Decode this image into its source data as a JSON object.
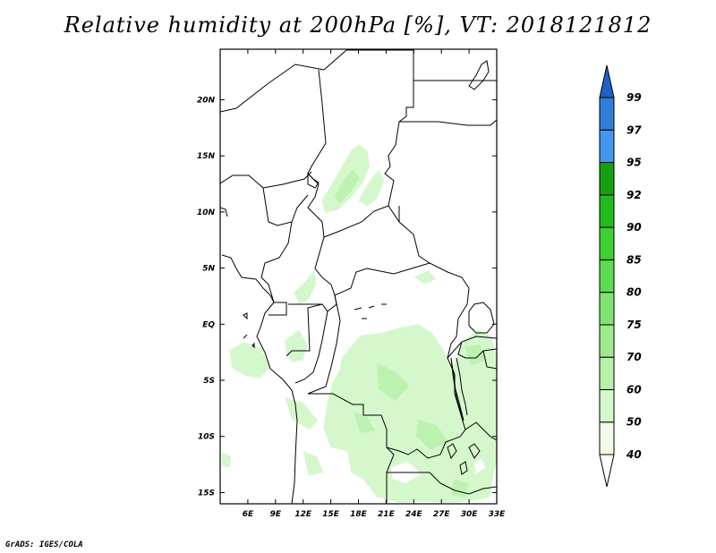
{
  "figure": {
    "title": "Relative humidity at 200hPa [%], VT: 2018121812",
    "credit": "GrADS: IGES/COLA"
  },
  "map": {
    "type": "map",
    "lon_range": [
      3,
      33
    ],
    "lat_range": [
      -16,
      24.5
    ],
    "x_ticks": [
      {
        "lon": 6,
        "label": "6E"
      },
      {
        "lon": 9,
        "label": "9E"
      },
      {
        "lon": 12,
        "label": "12E"
      },
      {
        "lon": 15,
        "label": "15E"
      },
      {
        "lon": 18,
        "label": "18E"
      },
      {
        "lon": 21,
        "label": "21E"
      },
      {
        "lon": 24,
        "label": "24E"
      },
      {
        "lon": 27,
        "label": "27E"
      },
      {
        "lon": 30,
        "label": "30E"
      },
      {
        "lon": 33,
        "label": "33E"
      }
    ],
    "y_ticks": [
      {
        "lat": 20,
        "label": "20N"
      },
      {
        "lat": 15,
        "label": "15N"
      },
      {
        "lat": 10,
        "label": "10N"
      },
      {
        "lat": 5,
        "label": "5N"
      },
      {
        "lat": 0,
        "label": "EQ"
      },
      {
        "lat": -5,
        "label": "5S"
      },
      {
        "lat": -10,
        "label": "10S"
      },
      {
        "lat": -15,
        "label": "15S"
      }
    ]
  },
  "colorbar": {
    "levels": [
      "40",
      "50",
      "60",
      "70",
      "75",
      "80",
      "85",
      "90",
      "92",
      "95",
      "97",
      "99"
    ],
    "colors": [
      "#f0fbea",
      "#d5f7cc",
      "#b7f0aa",
      "#9ceb8d",
      "#80e472",
      "#5cdc4e",
      "#3cd131",
      "#22bb1e",
      "#16a010",
      "#4496ec",
      "#2f7fd8",
      "#1e63c4"
    ],
    "under_color": "#ffffff",
    "over_color": "#1e63c4"
  },
  "humidity_regions": [
    {
      "level": "50",
      "pts": [
        [
          14.0,
          11.0
        ],
        [
          15.2,
          12.6
        ],
        [
          16.4,
          14.4
        ],
        [
          17.3,
          15.6
        ],
        [
          18.1,
          16.0
        ],
        [
          19.0,
          15.4
        ],
        [
          19.2,
          14.0
        ],
        [
          18.4,
          12.5
        ],
        [
          17.1,
          11.2
        ],
        [
          15.8,
          10.2
        ],
        [
          14.4,
          9.9
        ]
      ]
    },
    {
      "level": "50",
      "pts": [
        [
          18.0,
          11.0
        ],
        [
          19.0,
          12.5
        ],
        [
          20.2,
          13.8
        ],
        [
          20.8,
          12.8
        ],
        [
          20.0,
          11.2
        ],
        [
          19.0,
          10.5
        ]
      ]
    },
    {
      "level": "50",
      "pts": [
        [
          4.0,
          -2.3
        ],
        [
          5.6,
          -1.6
        ],
        [
          7.4,
          -2.1
        ],
        [
          8.4,
          -3.8
        ],
        [
          7.4,
          -4.8
        ],
        [
          5.8,
          -4.6
        ],
        [
          4.3,
          -3.9
        ]
      ]
    },
    {
      "level": "50",
      "pts": [
        [
          11.0,
          2.8
        ],
        [
          12.2,
          3.8
        ],
        [
          13.2,
          4.8
        ],
        [
          13.4,
          3.6
        ],
        [
          12.6,
          2.2
        ],
        [
          11.6,
          1.8
        ]
      ]
    },
    {
      "level": "50",
      "pts": [
        [
          24.0,
          4.2
        ],
        [
          25.6,
          4.8
        ],
        [
          26.4,
          4.0
        ],
        [
          25.2,
          3.6
        ]
      ]
    },
    {
      "level": "50",
      "pts": [
        [
          10.0,
          -1.5
        ],
        [
          11.5,
          -0.5
        ],
        [
          12.5,
          -1.8
        ],
        [
          12.0,
          -3.2
        ],
        [
          10.8,
          -3.4
        ],
        [
          10.2,
          -2.6
        ]
      ]
    },
    {
      "level": "50",
      "pts": [
        [
          16.2,
          -3.0
        ],
        [
          18.2,
          -1.0
        ],
        [
          20.4,
          -0.8
        ],
        [
          22.5,
          -0.3
        ],
        [
          24.5,
          0.0
        ],
        [
          26.0,
          -0.8
        ],
        [
          27.0,
          -2.0
        ],
        [
          28.2,
          -3.8
        ],
        [
          29.5,
          -1.4
        ],
        [
          31.0,
          -0.5
        ],
        [
          32.5,
          -1.2
        ],
        [
          33.0,
          -3.0
        ],
        [
          33.0,
          -12.0
        ],
        [
          32.2,
          -15.4
        ],
        [
          30.0,
          -15.8
        ],
        [
          27.5,
          -15.9
        ],
        [
          25.0,
          -15.8
        ],
        [
          22.5,
          -15.9
        ],
        [
          20.0,
          -15.4
        ],
        [
          18.5,
          -13.8
        ],
        [
          17.2,
          -13.2
        ],
        [
          16.8,
          -11.3
        ],
        [
          15.0,
          -11.0
        ],
        [
          14.2,
          -9.2
        ],
        [
          14.6,
          -7.0
        ],
        [
          15.2,
          -5.2
        ],
        [
          16.0,
          -4.0
        ]
      ]
    },
    {
      "level": "50",
      "pts": [
        [
          10.0,
          -6.5
        ],
        [
          12.0,
          -7.0
        ],
        [
          13.6,
          -8.6
        ],
        [
          12.7,
          -9.4
        ],
        [
          10.8,
          -8.5
        ]
      ]
    },
    {
      "level": "50",
      "pts": [
        [
          3.2,
          -11.4
        ],
        [
          4.2,
          -11.8
        ],
        [
          4.0,
          -12.8
        ],
        [
          3.2,
          -12.6
        ]
      ]
    },
    {
      "level": "50",
      "pts": [
        [
          12.0,
          -11.3
        ],
        [
          13.5,
          -11.8
        ],
        [
          14.2,
          -13.2
        ],
        [
          12.6,
          -13.5
        ]
      ]
    }
  ],
  "humidity_holes": [
    {
      "pts": [
        [
          21.5,
          -12.8
        ],
        [
          23.3,
          -12.2
        ],
        [
          24.8,
          -13.4
        ],
        [
          23.1,
          -14.2
        ],
        [
          21.7,
          -13.8
        ]
      ]
    },
    {
      "pts": [
        [
          30.5,
          -12.4
        ],
        [
          31.4,
          -12.0
        ],
        [
          31.8,
          -12.8
        ],
        [
          30.8,
          -13.3
        ]
      ]
    }
  ],
  "humidity_blobs": [
    {
      "level": "60",
      "pts": [
        [
          15.4,
          11.3
        ],
        [
          16.5,
          13.0
        ],
        [
          17.4,
          13.8
        ],
        [
          18.1,
          13.0
        ],
        [
          17.2,
          11.8
        ],
        [
          16.0,
          10.8
        ]
      ]
    },
    {
      "level": "60",
      "pts": [
        [
          20.0,
          -3.5
        ],
        [
          22.0,
          -4.2
        ],
        [
          23.5,
          -5.5
        ],
        [
          22.0,
          -6.8
        ],
        [
          20.2,
          -5.8
        ]
      ]
    },
    {
      "level": "60",
      "pts": [
        [
          24.5,
          -8.5
        ],
        [
          26.5,
          -9.0
        ],
        [
          27.8,
          -10.5
        ],
        [
          25.8,
          -11.2
        ],
        [
          24.3,
          -10.0
        ]
      ]
    },
    {
      "level": "60",
      "pts": [
        [
          17.5,
          -7.8
        ],
        [
          19.0,
          -8.3
        ],
        [
          19.8,
          -9.5
        ],
        [
          18.2,
          -9.7
        ]
      ]
    },
    {
      "level": "60",
      "pts": [
        [
          29.5,
          -2.0
        ],
        [
          31.2,
          -1.8
        ],
        [
          31.8,
          -3.2
        ],
        [
          30.2,
          -3.7
        ]
      ]
    },
    {
      "level": "60",
      "pts": [
        [
          28.4,
          -13.8
        ],
        [
          30.0,
          -14.2
        ],
        [
          29.6,
          -15.4
        ],
        [
          28.0,
          -15.2
        ]
      ]
    }
  ]
}
